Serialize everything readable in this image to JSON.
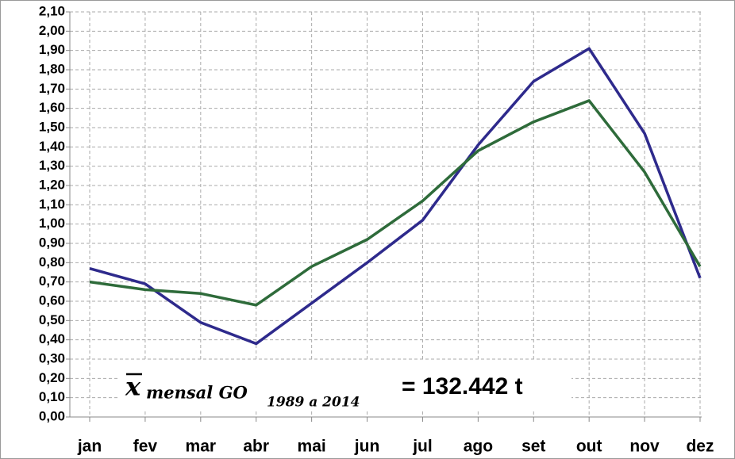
{
  "chart_data": {
    "type": "line",
    "categories": [
      "jan",
      "fev",
      "mar",
      "abr",
      "mai",
      "jun",
      "jul",
      "ago",
      "set",
      "out",
      "nov",
      "dez"
    ],
    "series": [
      {
        "color": "#2e2a8c",
        "values": [
          0.77,
          0.69,
          0.49,
          0.38,
          0.59,
          0.8,
          1.02,
          1.41,
          1.74,
          1.91,
          1.47,
          0.72
        ]
      },
      {
        "color": "#2e6b3a",
        "values": [
          0.7,
          0.66,
          0.64,
          0.58,
          0.78,
          0.92,
          1.12,
          1.38,
          1.53,
          1.64,
          1.27,
          0.78
        ]
      }
    ],
    "ylim": [
      0,
      2.1
    ],
    "yticks": [
      {
        "value": 0,
        "label": "0,00"
      },
      {
        "value": 0.1,
        "label": "0,10"
      },
      {
        "value": 0.2,
        "label": "0,20"
      },
      {
        "value": 0.3,
        "label": "0,30"
      },
      {
        "value": 0.4,
        "label": "0,40"
      },
      {
        "value": 0.5,
        "label": "0,50"
      },
      {
        "value": 0.6,
        "label": "0,60"
      },
      {
        "value": 0.7,
        "label": "0,70"
      },
      {
        "value": 0.8,
        "label": "0,80"
      },
      {
        "value": 0.9,
        "label": "0,90"
      },
      {
        "value": 1.0,
        "label": "1,00"
      },
      {
        "value": 1.1,
        "label": "1,10"
      },
      {
        "value": 1.2,
        "label": "1,20"
      },
      {
        "value": 1.3,
        "label": "1,30"
      },
      {
        "value": 1.4,
        "label": "1,40"
      },
      {
        "value": 1.5,
        "label": "1,50"
      },
      {
        "value": 1.6,
        "label": "1,60"
      },
      {
        "value": 1.7,
        "label": "1,70"
      },
      {
        "value": 1.8,
        "label": "1,80"
      },
      {
        "value": 1.9,
        "label": "1,90"
      },
      {
        "value": 2.0,
        "label": "2,00"
      },
      {
        "value": 2.1,
        "label": "2,10"
      }
    ],
    "grid": true,
    "annotation": {
      "symbol": "x",
      "subscript": "mensal GO",
      "sub_subscript": "1989 a 2014",
      "value_text": "= 132.442 t"
    }
  }
}
